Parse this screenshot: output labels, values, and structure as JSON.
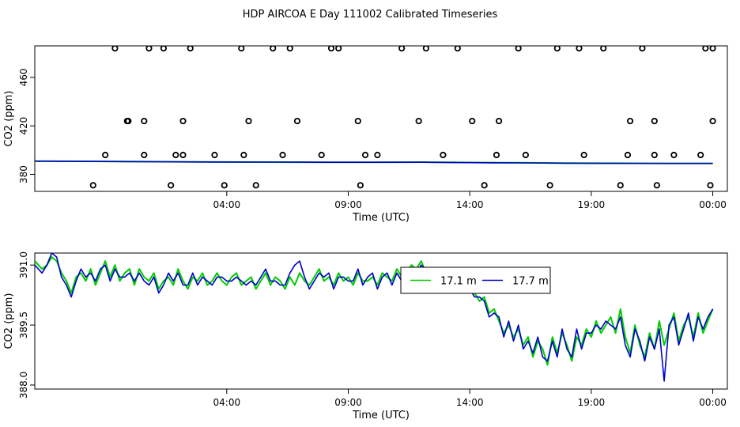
{
  "title": "HDP AIRCOA E  Day 111002  Calibrated Timeseries",
  "colors": {
    "dots": "#000000",
    "green": "#00cc00",
    "blue": "#0000cc"
  },
  "chart_data": [
    {
      "type": "line",
      "xlabel": "Time (UTC)",
      "ylabel": "CO2 (ppm)",
      "xlim": [
        -3.9,
        24.6
      ],
      "ylim": [
        366,
        486
      ],
      "xticks": [
        4,
        9,
        14,
        19,
        24
      ],
      "xtick_labels": [
        "04:00",
        "09:00",
        "14:00",
        "19:00",
        "00:00"
      ],
      "yticks": [
        380,
        420,
        460
      ],
      "ytick_labels": [
        "380",
        "420",
        "460"
      ],
      "calibration_points": {
        "x": [
          -1.5,
          1.7,
          3.9,
          5.2,
          9.5,
          14.6,
          17.3,
          20.2,
          21.7,
          23.9,
          -1.0,
          0.6,
          1.9,
          2.2,
          3.5,
          4.7,
          6.3,
          7.9,
          9.7,
          10.2,
          12.9,
          15.1,
          16.3,
          18.7,
          20.5,
          21.6,
          22.4,
          23.5,
          -0.1,
          -0.05,
          0.6,
          2.2,
          4.9,
          6.9,
          9.4,
          11.9,
          14.1,
          15.2,
          20.6,
          21.6,
          24.0,
          -0.6,
          0.8,
          1.4,
          2.5,
          4.6,
          5.9,
          6.6,
          8.3,
          8.6,
          11.2,
          12.2,
          13.5,
          16.0,
          17.6,
          18.5,
          19.5,
          21.1,
          23.7,
          24.0
        ],
        "y": [
          371,
          371,
          371,
          371,
          371,
          371,
          371,
          371,
          371,
          371,
          396,
          396,
          396,
          396,
          396,
          396,
          396,
          396,
          396,
          396,
          396,
          396,
          396,
          396,
          396,
          396,
          396,
          396,
          424,
          424,
          424,
          424,
          424,
          424,
          424,
          424,
          424,
          424,
          424,
          424,
          424,
          484,
          484,
          484,
          484,
          484,
          484,
          484,
          484,
          484,
          484,
          484,
          484,
          484,
          484,
          484,
          484,
          484,
          484,
          484
        ]
      },
      "series": [
        {
          "x": [
            -3.9,
            -2.0,
            0.0,
            2.0,
            4.0,
            6.0,
            8.0,
            10.0,
            12.0,
            14.0,
            16.0,
            18.0,
            20.0,
            22.0,
            24.0
          ],
          "values": [
            390.9,
            390.8,
            390.6,
            390.4,
            390.2,
            390.1,
            390.0,
            390.0,
            390.1,
            389.8,
            389.6,
            389.3,
            389.2,
            389.1,
            389.1
          ]
        },
        {
          "x": [
            -3.9,
            -2.0,
            0.0,
            2.0,
            4.0,
            6.0,
            8.0,
            10.0,
            12.0,
            14.0,
            16.0,
            18.0,
            20.0,
            22.0,
            24.0
          ],
          "values": [
            390.9,
            390.7,
            390.5,
            390.3,
            390.2,
            390.1,
            390.0,
            390.0,
            390.0,
            389.7,
            389.5,
            389.2,
            389.1,
            389.0,
            389.0
          ]
        }
      ]
    },
    {
      "type": "line",
      "xlabel": "Time (UTC)",
      "ylabel": "CO2 (ppm)",
      "xlim": [
        -3.9,
        24.6
      ],
      "ylim": [
        387.9,
        391.3
      ],
      "xticks": [
        4,
        9,
        14,
        19,
        24
      ],
      "xtick_labels": [
        "04:00",
        "09:00",
        "14:00",
        "19:00",
        "00:00"
      ],
      "yticks": [
        388.0,
        389.5,
        391.0
      ],
      "ytick_labels": [
        "388.0",
        "389.5",
        "391.0"
      ],
      "legend": {
        "position": "top-center"
      },
      "series": [
        {
          "name": "17.1 m",
          "color": "#00cc00",
          "x": [
            -3.9,
            -3.6,
            -3.4,
            -3.2,
            -3.0,
            -2.8,
            -2.6,
            -2.4,
            -2.2,
            -2.0,
            -1.8,
            -1.6,
            -1.4,
            -1.2,
            -1.0,
            -0.8,
            -0.6,
            -0.4,
            -0.2,
            0.0,
            0.2,
            0.4,
            0.6,
            0.8,
            1.0,
            1.2,
            1.4,
            1.6,
            1.8,
            2.0,
            2.2,
            2.4,
            2.6,
            2.8,
            3.0,
            3.2,
            3.4,
            3.6,
            3.8,
            4.0,
            4.2,
            4.4,
            4.6,
            4.8,
            5.0,
            5.2,
            5.4,
            5.6,
            5.8,
            6.0,
            6.2,
            6.4,
            6.6,
            6.8,
            7.0,
            7.2,
            7.4,
            7.6,
            7.8,
            8.0,
            8.2,
            8.4,
            8.6,
            8.8,
            9.0,
            9.2,
            9.4,
            9.6,
            9.8,
            10.0,
            10.2,
            10.4,
            10.6,
            10.8,
            11.0,
            11.2,
            11.4,
            11.6,
            11.8,
            12.0,
            12.2,
            12.4,
            12.6,
            12.8,
            13.0,
            13.2,
            13.4,
            13.6,
            13.8,
            14.0,
            14.2,
            14.4,
            14.6,
            14.8,
            15.0,
            15.2,
            15.4,
            15.6,
            15.8,
            16.0,
            16.2,
            16.4,
            16.6,
            16.8,
            17.0,
            17.2,
            17.4,
            17.6,
            17.8,
            18.0,
            18.2,
            18.4,
            18.6,
            18.8,
            19.0,
            19.2,
            19.4,
            19.6,
            19.8,
            20.0,
            20.2,
            20.4,
            20.6,
            20.8,
            21.0,
            21.2,
            21.4,
            21.6,
            21.8,
            22.0,
            22.2,
            22.4,
            22.6,
            22.8,
            23.0,
            23.2,
            23.4,
            23.6,
            23.8,
            24.0
          ],
          "values": [
            391.1,
            390.9,
            391.0,
            391.2,
            391.1,
            390.8,
            390.6,
            390.3,
            390.7,
            390.8,
            390.6,
            390.9,
            390.5,
            390.8,
            391.1,
            390.7,
            391.0,
            390.6,
            390.8,
            390.9,
            390.5,
            390.9,
            390.7,
            390.6,
            390.8,
            390.4,
            390.6,
            390.7,
            390.5,
            390.9,
            390.6,
            390.4,
            390.7,
            390.6,
            390.8,
            390.5,
            390.6,
            390.8,
            390.6,
            390.5,
            390.7,
            390.8,
            390.5,
            390.6,
            390.7,
            390.4,
            390.6,
            390.8,
            390.5,
            390.7,
            390.6,
            390.4,
            390.7,
            390.5,
            390.8,
            390.6,
            390.5,
            390.7,
            390.9,
            390.6,
            390.7,
            390.5,
            390.8,
            390.6,
            390.7,
            390.5,
            390.8,
            390.6,
            390.6,
            390.7,
            390.5,
            390.8,
            390.7,
            390.6,
            390.9,
            390.7,
            390.8,
            391.0,
            390.9,
            391.1,
            390.8,
            390.7,
            390.9,
            390.6,
            390.8,
            390.5,
            390.7,
            390.4,
            390.6,
            390.5,
            390.3,
            390.1,
            390.2,
            389.8,
            389.9,
            389.6,
            389.3,
            389.5,
            389.2,
            389.4,
            389.0,
            389.2,
            388.7,
            389.1,
            388.9,
            388.5,
            389.2,
            388.8,
            389.3,
            389.0,
            388.6,
            389.2,
            389.0,
            389.4,
            389.2,
            389.6,
            389.3,
            389.5,
            389.7,
            389.3,
            389.9,
            389.2,
            388.8,
            389.5,
            389.0,
            388.7,
            389.3,
            388.9,
            389.6,
            389.0,
            389.4,
            389.8,
            389.1,
            389.5,
            389.7,
            389.2,
            389.8,
            389.3,
            389.6,
            389.9
          ],
          "labels": []
        },
        {
          "name": "17.7 m",
          "color": "#0000cc",
          "x": [
            -3.9,
            -3.6,
            -3.4,
            -3.2,
            -3.0,
            -2.8,
            -2.6,
            -2.4,
            -2.2,
            -2.0,
            -1.8,
            -1.6,
            -1.4,
            -1.2,
            -1.0,
            -0.8,
            -0.6,
            -0.4,
            -0.2,
            0.0,
            0.2,
            0.4,
            0.6,
            0.8,
            1.0,
            1.2,
            1.4,
            1.6,
            1.8,
            2.0,
            2.2,
            2.4,
            2.6,
            2.8,
            3.0,
            3.2,
            3.4,
            3.6,
            3.8,
            4.0,
            4.2,
            4.4,
            4.6,
            4.8,
            5.0,
            5.2,
            5.4,
            5.6,
            5.8,
            6.0,
            6.2,
            6.4,
            6.6,
            6.8,
            7.0,
            7.2,
            7.4,
            7.6,
            7.8,
            8.0,
            8.2,
            8.4,
            8.6,
            8.8,
            9.0,
            9.2,
            9.4,
            9.6,
            9.8,
            10.0,
            10.2,
            10.4,
            10.6,
            10.8,
            11.0,
            11.2,
            11.4,
            11.6,
            11.8,
            12.0,
            12.2,
            12.4,
            12.6,
            12.8,
            13.0,
            13.2,
            13.4,
            13.6,
            13.8,
            14.0,
            14.2,
            14.4,
            14.6,
            14.8,
            15.0,
            15.2,
            15.4,
            15.6,
            15.8,
            16.0,
            16.2,
            16.4,
            16.6,
            16.8,
            17.0,
            17.2,
            17.4,
            17.6,
            17.8,
            18.0,
            18.2,
            18.4,
            18.6,
            18.8,
            19.0,
            19.2,
            19.4,
            19.6,
            19.8,
            20.0,
            20.2,
            20.4,
            20.6,
            20.8,
            21.0,
            21.2,
            21.4,
            21.6,
            21.8,
            22.0,
            22.2,
            22.4,
            22.6,
            22.8,
            23.0,
            23.2,
            23.4,
            23.6,
            23.8,
            24.0
          ],
          "values": [
            391.0,
            390.8,
            391.0,
            391.3,
            391.2,
            390.7,
            390.5,
            390.2,
            390.6,
            390.9,
            390.7,
            390.8,
            390.6,
            390.9,
            391.0,
            390.6,
            390.9,
            390.7,
            390.7,
            390.8,
            390.6,
            390.8,
            390.6,
            390.5,
            390.7,
            390.3,
            390.5,
            390.8,
            390.6,
            390.8,
            390.5,
            390.5,
            390.8,
            390.5,
            390.7,
            390.6,
            390.5,
            390.7,
            390.7,
            390.6,
            390.6,
            390.7,
            390.6,
            390.5,
            390.6,
            390.5,
            390.7,
            390.9,
            390.6,
            390.6,
            390.5,
            390.5,
            390.8,
            391.0,
            391.1,
            390.7,
            390.4,
            390.6,
            390.8,
            390.7,
            390.8,
            390.4,
            390.7,
            390.7,
            390.6,
            390.6,
            390.9,
            390.5,
            390.7,
            390.8,
            390.4,
            390.7,
            390.8,
            390.5,
            390.8,
            390.6,
            390.9,
            390.9,
            390.8,
            391.0,
            390.9,
            390.6,
            390.8,
            390.7,
            390.7,
            390.6,
            390.6,
            390.5,
            390.7,
            390.4,
            390.2,
            390.2,
            390.1,
            389.7,
            389.8,
            389.7,
            389.2,
            389.6,
            389.1,
            389.5,
            388.9,
            389.1,
            388.8,
            389.2,
            388.7,
            388.6,
            389.1,
            388.7,
            389.4,
            388.9,
            388.7,
            389.4,
            388.9,
            389.3,
            389.3,
            389.5,
            389.4,
            389.6,
            389.5,
            389.4,
            389.7,
            389.0,
            388.7,
            389.4,
            389.1,
            388.6,
            389.2,
            388.9,
            389.4,
            388.1,
            389.5,
            389.7,
            389.0,
            389.4,
            389.8,
            389.1,
            389.7,
            389.4,
            389.7,
            389.9
          ],
          "labels": []
        }
      ]
    }
  ]
}
